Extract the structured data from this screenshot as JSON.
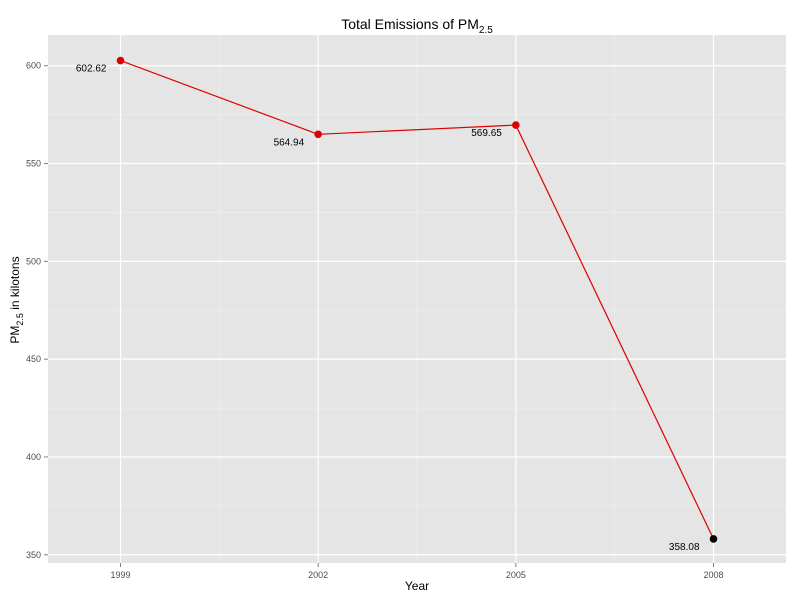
{
  "chart_data": {
    "type": "line",
    "title": {
      "main": "Total Emissions of PM",
      "subscript": "2.5"
    },
    "xlabel": "Year",
    "ylabel": {
      "prefix": "PM",
      "subscript": "2.5",
      "suffix": " in kilotons"
    },
    "x": [
      1999,
      2002,
      2005,
      2008
    ],
    "x_tick_labels": [
      "1999",
      "2002",
      "2005",
      "2008"
    ],
    "y_ticks": [
      350,
      400,
      450,
      500,
      550,
      600
    ],
    "y_tick_labels": [
      "350",
      "400",
      "450",
      "500",
      "550",
      "600"
    ],
    "xlim": [
      1997.9,
      2009.1
    ],
    "ylim": [
      345.8,
      615.7
    ],
    "grid": true,
    "series": [
      {
        "values": [
          602.62,
          564.94,
          569.65,
          358.08
        ],
        "data_labels": [
          "602.62",
          "564.94",
          "569.65",
          "358.08"
        ],
        "line_color": "#dd0000",
        "point_colors": [
          "#dd0000",
          "#dd0000",
          "#dd0000",
          "#000000"
        ]
      }
    ],
    "panel_background": "#e5e5e5",
    "grid_major_color": "#ffffff",
    "grid_minor_color": "#f2f2f2"
  }
}
